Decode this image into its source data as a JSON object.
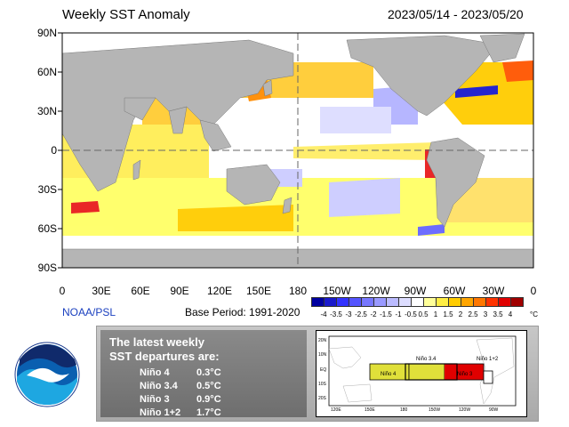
{
  "header": {
    "title": "Weekly SST Anomaly",
    "date_range": "2023/05/14 - 2023/05/20"
  },
  "map": {
    "lat_labels": [
      "90N",
      "60N",
      "30N",
      "0",
      "30S",
      "60S",
      "90S"
    ],
    "lon_labels": [
      "0",
      "30E",
      "60E",
      "90E",
      "120E",
      "150E",
      "180",
      "150W",
      "120W",
      "90W",
      "60W",
      "30W",
      "0"
    ],
    "colors": {
      "land": "#b5b5b5",
      "ocean_neutral": "#ffffff",
      "warm_light": "#ffff66",
      "warm_mid": "#ffcc00",
      "warm_strong": "#ff8c00",
      "hot": "#e81c1c",
      "cool_light": "#b3b3ff",
      "cool_mid": "#6666ff",
      "cold": "#1a1acc"
    }
  },
  "footer": {
    "credit": "NOAA/PSL",
    "base_period": "Base Period: 1991-2020"
  },
  "colorbar": {
    "labels": [
      "-4",
      "-3.5",
      "-3",
      "-2.5",
      "-2",
      "-1.5",
      "-1",
      "-0.5",
      "0.5",
      "1",
      "1.5",
      "2",
      "2.5",
      "3",
      "3.5",
      "4"
    ],
    "unit": "°C",
    "colors": [
      "#0000a0",
      "#1a1acc",
      "#3333ff",
      "#5555ff",
      "#7777ff",
      "#9999ff",
      "#bbbbff",
      "#ddddff",
      "#ffffff",
      "#ffff99",
      "#ffee44",
      "#ffcc00",
      "#ffa500",
      "#ff7700",
      "#ff3300",
      "#e00000",
      "#a00000"
    ]
  },
  "panel": {
    "heading_line1": "The latest weekly",
    "heading_line2": "SST departures are:",
    "nino": [
      {
        "name": "Niño 4",
        "value": "0.3°C"
      },
      {
        "name": "Niño 3.4",
        "value": "0.5°C"
      },
      {
        "name": "Niño 3",
        "value": "0.9°C"
      },
      {
        "name": "Niño 1+2",
        "value": "1.7°C"
      }
    ]
  },
  "inset": {
    "lat_labels": [
      "20N",
      "10N",
      "EQ",
      "10S",
      "20S"
    ],
    "lon_labels": [
      "120E",
      "150E",
      "180",
      "150W",
      "120W",
      "90W"
    ],
    "region_labels": {
      "nino4": "Niño 4",
      "nino34": "Niño 3.4",
      "nino3": "Niño 3",
      "nino12": "Niño 1+2"
    },
    "colors": {
      "nino4": "#e0e03a",
      "nino3": "#e00000",
      "nino12": "#ffffff"
    }
  }
}
